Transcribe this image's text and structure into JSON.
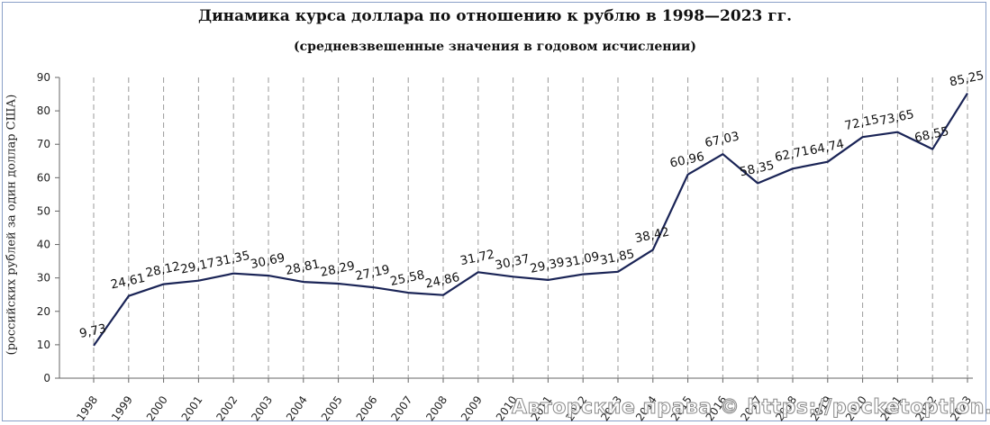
{
  "chart_data": {
    "type": "line",
    "title": "Динамика курса доллара по отношению к рублю в 1998—2023 гг.",
    "subtitle": "(средневзвешенные значения в годовом исчислении)",
    "xlabel": "",
    "ylabel": "(российских рублей за один доллар США)",
    "ylim": [
      0,
      90
    ],
    "yticks": [
      "0",
      "10",
      "20",
      "30",
      "40",
      "50",
      "60",
      "70",
      "80",
      "90"
    ],
    "categories": [
      "1998",
      "1999",
      "2000",
      "2001",
      "2002",
      "2003",
      "2004",
      "2005",
      "2006",
      "2007",
      "2008",
      "2009",
      "2010",
      "2011",
      "2012",
      "2013",
      "2014",
      "2015",
      "2016",
      "2017",
      "2018",
      "2019",
      "2020",
      "2021",
      "2022",
      "2023"
    ],
    "values": [
      9.73,
      24.61,
      28.12,
      29.17,
      31.35,
      30.69,
      28.81,
      28.29,
      27.19,
      25.58,
      24.86,
      31.72,
      30.37,
      29.39,
      31.09,
      31.85,
      38.42,
      60.96,
      67.03,
      58.35,
      62.71,
      64.74,
      72.15,
      73.65,
      68.55,
      85.25
    ],
    "value_labels": [
      "9,73",
      "24,61",
      "28,12",
      "29,17",
      "31,35",
      "30,69",
      "28,81",
      "28,29",
      "27,19",
      "25,58",
      "24,86",
      "31,72",
      "30,37",
      "29,39",
      "31,09",
      "31,85",
      "38,42",
      "60,96",
      "67,03",
      "58,35",
      "62,71",
      "64,74",
      "72,15",
      "73,65",
      "68,55",
      "85,25"
    ],
    "line_color": "#1a2456",
    "grid": "vertical-dashed"
  },
  "watermark": "Авторские права © https://pocketoption.ru"
}
